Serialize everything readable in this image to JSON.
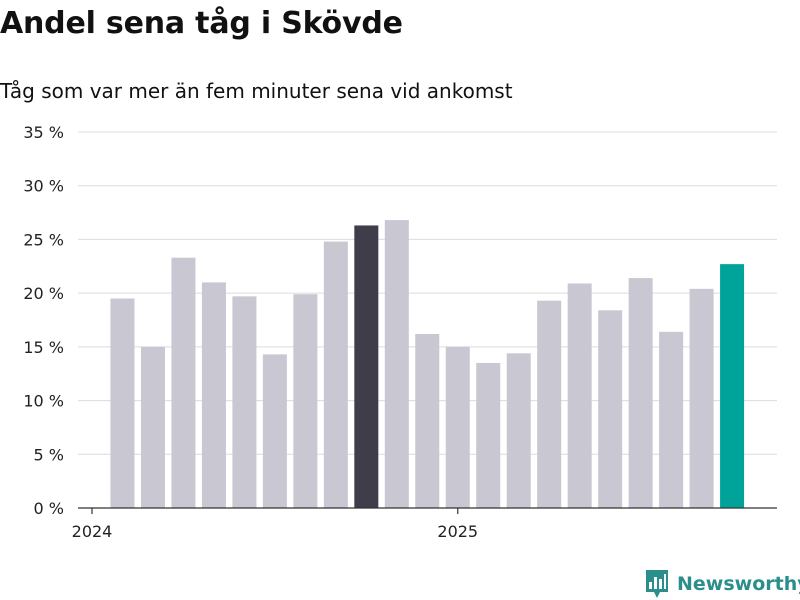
{
  "title": "Andel sena tåg i Skövde",
  "subtitle": "Tåg som var mer än fem minuter sena vid ankomst",
  "brand": {
    "name": "Newsworthy"
  },
  "colors": {
    "default": "#c8c7d2",
    "highlight_dark": "#3e3d49",
    "highlight_latest": "#00a39a",
    "brand": "#2a8f8a"
  },
  "chart_data": {
    "type": "bar",
    "ylim": [
      0,
      35
    ],
    "y_ticks": [
      0,
      5,
      10,
      15,
      20,
      25,
      30,
      35
    ],
    "y_tick_labels": [
      "0 %",
      "5 %",
      "10 %",
      "15 %",
      "20 %",
      "25 %",
      "30 %",
      "35 %"
    ],
    "x_tick_labels": [
      {
        "label": "2024",
        "index": 0
      },
      {
        "label": "2025",
        "index": 12
      }
    ],
    "grid": true,
    "values": [
      19.5,
      15.0,
      23.3,
      21.0,
      19.7,
      14.3,
      19.9,
      24.8,
      26.3,
      26.8,
      16.2,
      15.0,
      13.5,
      14.4,
      19.3,
      20.9,
      18.4,
      21.4,
      16.4,
      20.4,
      22.7
    ],
    "bar_index_offset": 1,
    "highlight": {
      "8": "highlight_dark",
      "20": "highlight_latest"
    }
  }
}
